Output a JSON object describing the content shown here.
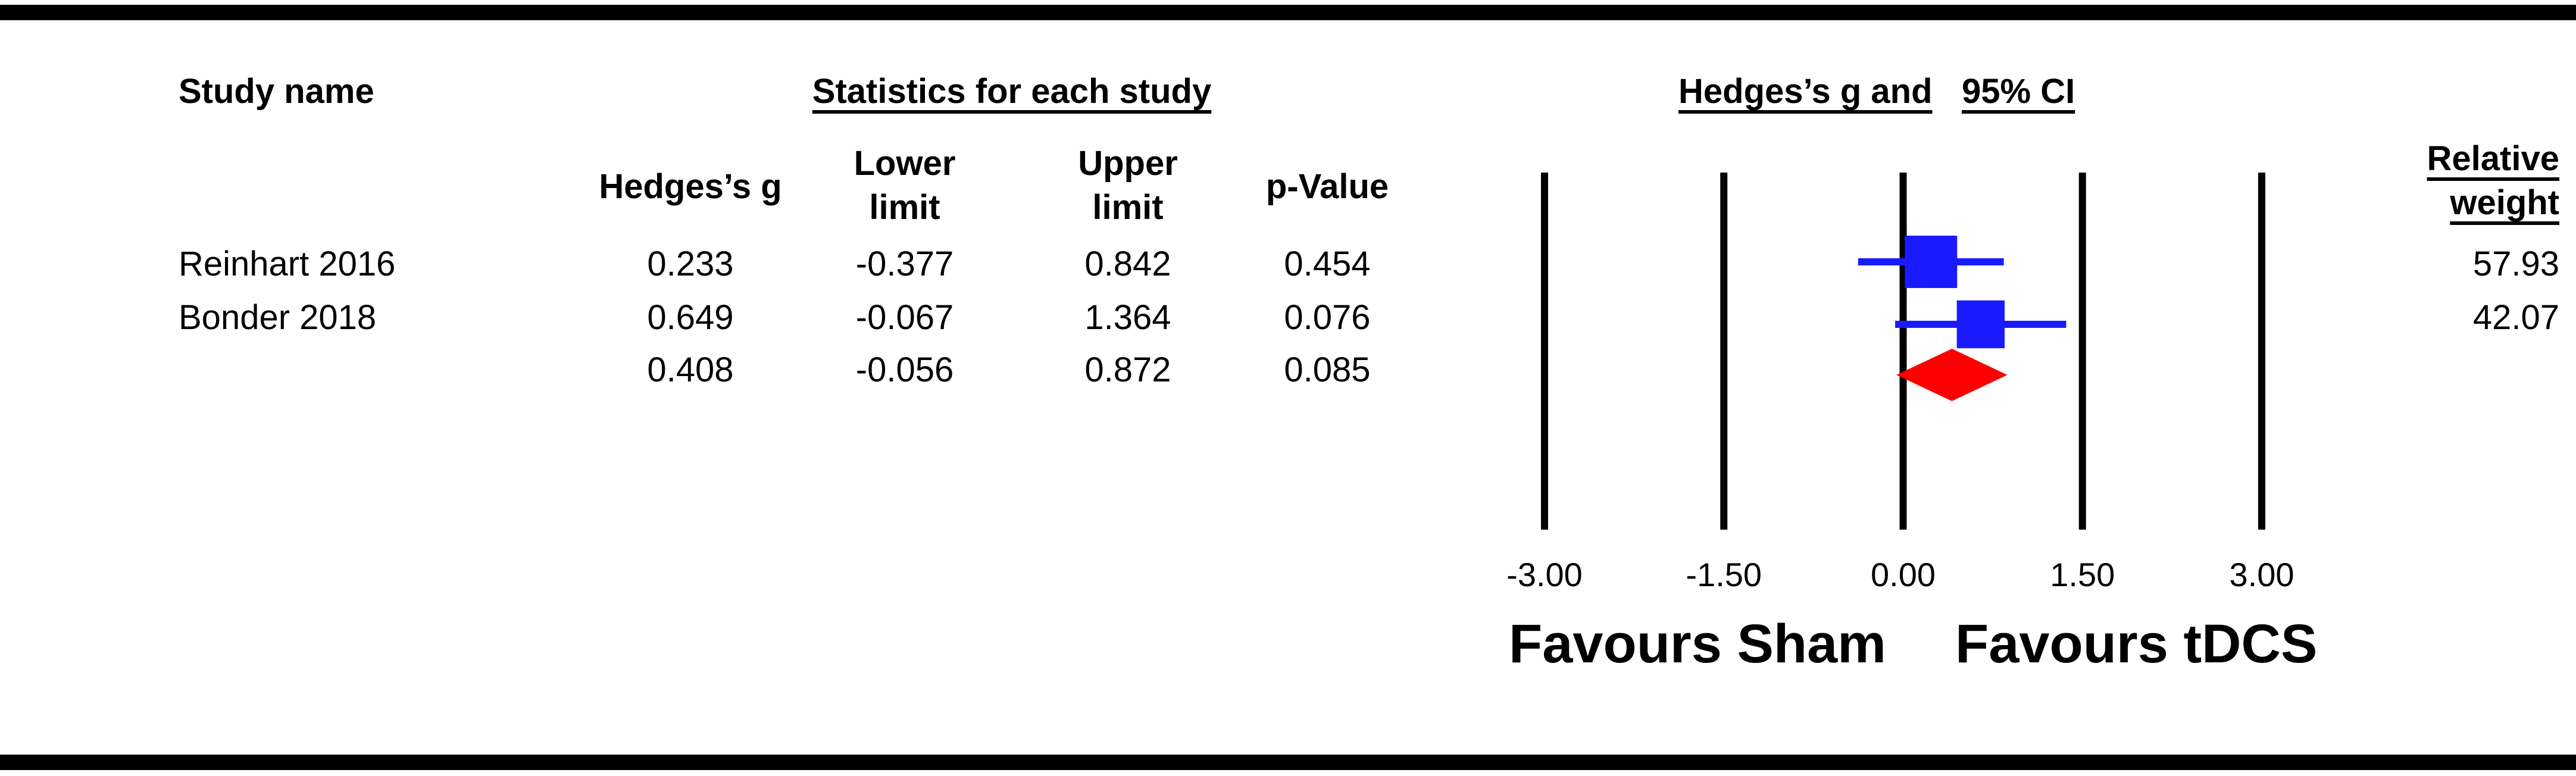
{
  "table": {
    "headers": {
      "study_name": "Study name",
      "statistics_group": "Statistics for each study",
      "hedges_g": "Hedges’s g",
      "lower_limit": "Lower limit",
      "upper_limit": "Upper limit",
      "p_value": "p-Value",
      "plot_title_part1": "Hedges’s g and",
      "plot_title_part2": "95% CI",
      "relative_weight": "Relative weight"
    },
    "rows": [
      {
        "study": "Reinhart 2016",
        "g": "0.233",
        "lower": "-0.377",
        "upper": "0.842",
        "p": "0.454",
        "weight": "57.93"
      },
      {
        "study": "Bonder 2018",
        "g": "0.649",
        "lower": "-0.067",
        "upper": "1.364",
        "p": "0.076",
        "weight": "42.07"
      },
      {
        "study": "",
        "g": "0.408",
        "lower": "-0.056",
        "upper": "0.872",
        "p": "0.085",
        "weight": ""
      }
    ]
  },
  "chart_data": {
    "type": "scatter",
    "subtype": "forest-plot",
    "xlim": [
      -3.0,
      3.0
    ],
    "xticks": [
      -3.0,
      -1.5,
      0.0,
      1.5,
      3.0
    ],
    "xtick_labels": [
      "-3.00",
      "-1.50",
      "0.00",
      "1.50",
      "3.00"
    ],
    "vertical_lines_at": [
      -3.0,
      -1.5,
      0.0,
      1.5,
      3.0
    ],
    "left_label": "Favours Sham",
    "right_label": "Favours tDCS",
    "studies": [
      {
        "name": "Reinhart 2016",
        "effect": 0.233,
        "lower": -0.377,
        "upper": 0.842,
        "weight": 57.93
      },
      {
        "name": "Bonder 2018",
        "effect": 0.649,
        "lower": -0.067,
        "upper": 1.364,
        "weight": 42.07
      }
    ],
    "summary": {
      "effect": 0.408,
      "lower": -0.056,
      "upper": 0.872
    },
    "colors": {
      "study_marker": "#1a1aff",
      "summary_marker": "#ff0000",
      "lines": "#000000"
    }
  }
}
